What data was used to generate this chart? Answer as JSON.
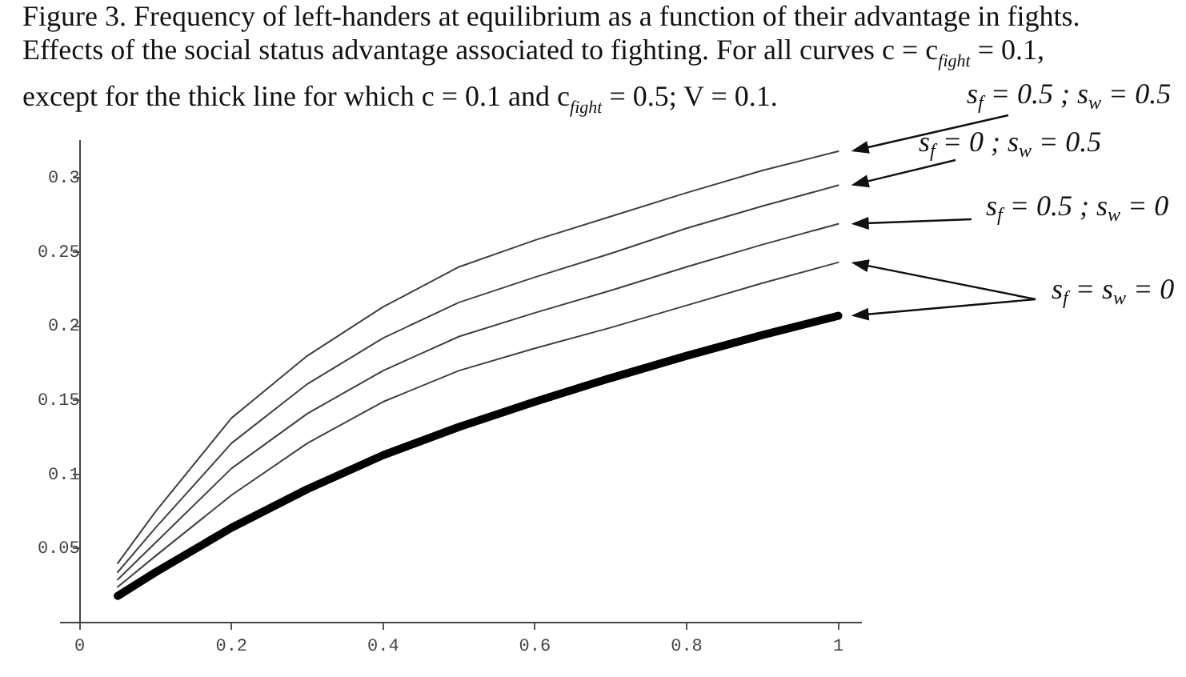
{
  "chart_data": {
    "type": "line",
    "title": "Figure 3. Frequency of left-handers at equilibrium as a function of their advantage in fights.",
    "subtitle": "Effects of the social status advantage associated to fighting. For all curves c = c$_{fight}$ = 0.1, except for the thick line for which c = 0.1 and c$_{fight}$ = 0.5; V = 0.1.",
    "x": [
      0.05,
      0.1,
      0.2,
      0.3,
      0.4,
      0.5,
      0.6,
      0.7,
      0.8,
      0.9,
      1
    ],
    "series": [
      {
        "name": "s$_{f}$ = 0.5 ; s$_{w}$ = 0.5",
        "color": "#404040",
        "values": [
          0.04,
          0.075,
          0.138,
          0.18,
          0.213,
          0.24,
          0.258,
          0.274,
          0.29,
          0.305,
          0.318
        ]
      },
      {
        "name": "s$_{f}$ = 0 ; s$_{w}$ = 0.5",
        "color": "#404040",
        "values": [
          0.034,
          0.064,
          0.121,
          0.161,
          0.192,
          0.216,
          0.233,
          0.249,
          0.266,
          0.281,
          0.295
        ]
      },
      {
        "name": "s$_{f}$ = 0.5 ; s$_{w}$ = 0",
        "color": "#404040",
        "values": [
          0.029,
          0.054,
          0.104,
          0.141,
          0.17,
          0.193,
          0.209,
          0.224,
          0.24,
          0.255,
          0.269
        ]
      },
      {
        "name": "s$_{f}$ = s$_{w}$ = 0",
        "color": "#404040",
        "values": [
          0.024,
          0.045,
          0.086,
          0.121,
          0.149,
          0.17,
          0.185,
          0.199,
          0.214,
          0.229,
          0.243
        ]
      },
      {
        "color": "#000000",
        "values": [
          0.018,
          0.034,
          0.064,
          0.09,
          0.113,
          0.132,
          0.149,
          0.165,
          0.18,
          0.194,
          0.207
        ]
      }
    ],
    "xlim": [
      -0.025,
      1.03
    ],
    "ylim": [
      0,
      0.325
    ],
    "xticks": [
      0,
      0.2,
      0.4,
      0.6,
      0.8,
      1
    ],
    "yticks": [
      0.05,
      0.1,
      0.15,
      0.2,
      0.25,
      0.3
    ],
    "grid": false,
    "legend": false,
    "marker": "none",
    "line_style": "solid"
  }
}
